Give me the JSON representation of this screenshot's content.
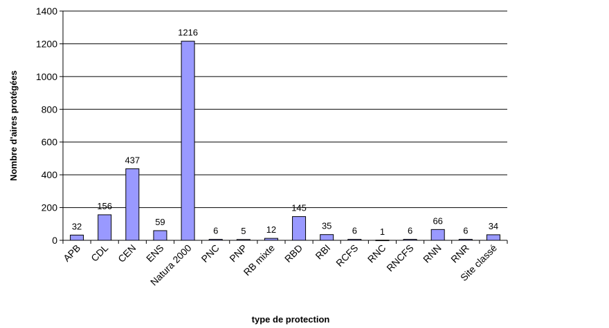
{
  "chart_data": {
    "type": "bar",
    "title": "",
    "xlabel": "type de protection",
    "ylabel": "Nombre d'aires protégées",
    "categories": [
      "APB",
      "CDL",
      "CEN",
      "ENS",
      "Natura 2000",
      "PNC",
      "PNP",
      "RB mixte",
      "RBD",
      "RBI",
      "RCFS",
      "RNC",
      "RNCFS",
      "RNN",
      "RNR",
      "Site classé"
    ],
    "values": [
      32,
      156,
      437,
      59,
      1216,
      6,
      5,
      12,
      145,
      35,
      6,
      1,
      6,
      66,
      6,
      34
    ],
    "ylim": [
      0,
      1400
    ],
    "yticks": [
      0,
      200,
      400,
      600,
      800,
      1000,
      1200,
      1400
    ],
    "grid": true,
    "legend": "none",
    "colors": {
      "bar_fill": "#9999ff",
      "bar_stroke": "#000000",
      "grid": "#000000"
    }
  }
}
